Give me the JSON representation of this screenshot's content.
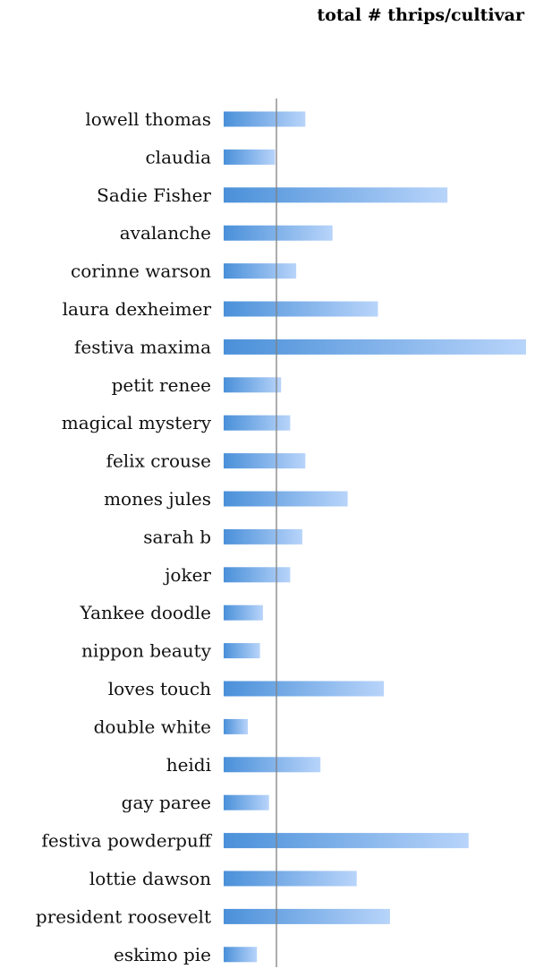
{
  "chart_data": {
    "type": "bar",
    "orientation": "horizontal",
    "title": "total # thrips/cultivar",
    "xlabel": "",
    "ylabel": "",
    "grid": false,
    "legend": "none",
    "categories": [
      "lowell thomas",
      "claudia",
      "Sadie Fisher",
      "avalanche",
      "corinne warson",
      "laura dexheimer",
      "festiva maxima",
      "petit renee",
      "magical mystery",
      "felix crouse",
      "mones jules",
      "sarah b",
      "joker",
      "Yankee doodle",
      "nippon beauty",
      "loves touch",
      "double white",
      "heidi",
      "gay paree",
      "festiva powderpuff",
      "lottie dawson",
      "president roosevelt",
      "eskimo pie"
    ],
    "values": [
      27,
      17,
      74,
      36,
      24,
      51,
      100,
      19,
      22,
      27,
      41,
      26,
      22,
      13,
      12,
      53,
      8,
      32,
      15,
      81,
      44,
      55,
      11
    ],
    "colors": {
      "bar_start": "#4a90d9",
      "bar_end": "#b8d4fa",
      "axis": "#808080"
    }
  }
}
